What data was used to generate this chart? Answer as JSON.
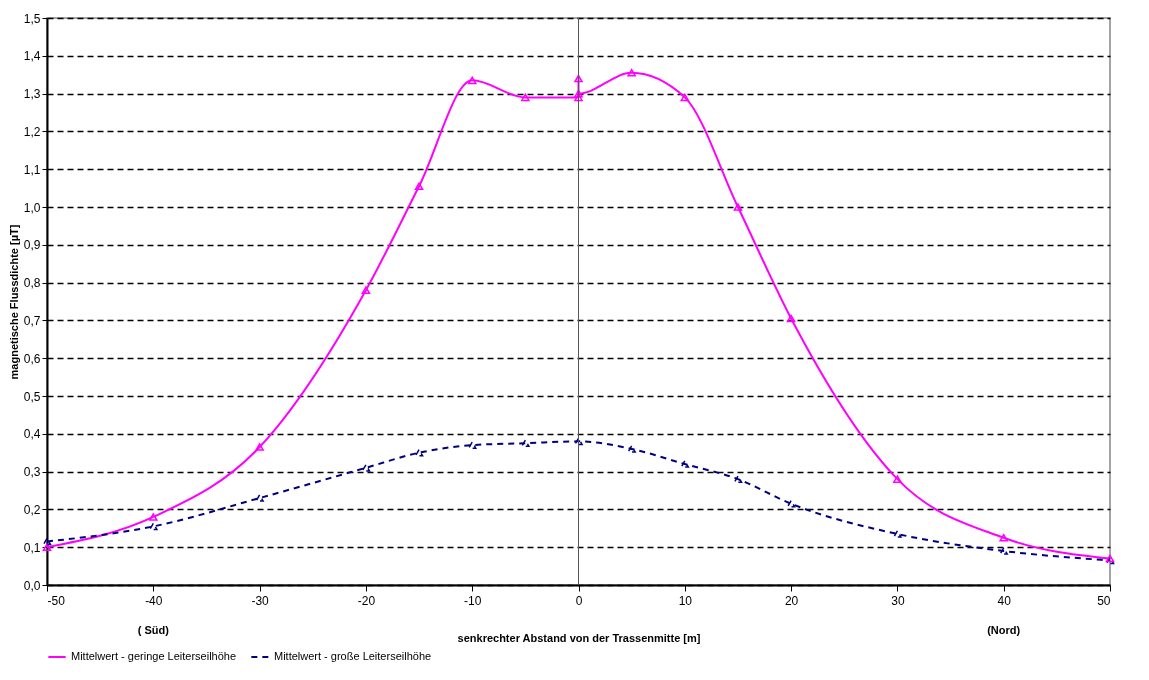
{
  "chart_data": {
    "type": "line",
    "xlabel": "senkrechter Abstand von der Trassenmitte [m]",
    "ylabel": "magnetische Flussdichte [µT]",
    "annotations": [
      "( Süd)",
      "(Nord)"
    ],
    "x": [
      -50,
      -40,
      -30,
      -20,
      -15,
      -10,
      -5,
      0,
      0,
      0,
      5,
      10,
      15,
      20,
      30,
      40,
      50
    ],
    "series": [
      {
        "name": "Mittelwert - geringe Leiterseilhöhe",
        "color": "#ff00ff",
        "line_style": "solid",
        "values": [
          0.1,
          0.18,
          0.365,
          0.78,
          1.055,
          1.335,
          1.29,
          1.29,
          1.34,
          1.3,
          1.355,
          1.29,
          1.0,
          0.705,
          0.28,
          0.125,
          0.07
        ]
      },
      {
        "name": "Mittelwert - große Leiterseilhöhe",
        "color": "#000080",
        "line_style": "dashed",
        "x": [
          -50,
          -40,
          -30,
          -20,
          -15,
          -10,
          -5,
          0,
          5,
          10,
          15,
          20,
          30,
          40,
          50
        ],
        "values": [
          0.115,
          0.155,
          0.23,
          0.31,
          0.35,
          0.37,
          0.375,
          0.38,
          0.36,
          0.32,
          0.28,
          0.215,
          0.135,
          0.09,
          0.065
        ]
      }
    ],
    "xlim": [
      -50,
      50
    ],
    "xticks": [
      -50,
      -40,
      -30,
      -20,
      -10,
      0,
      10,
      20,
      30,
      40,
      50
    ],
    "ylim": [
      0,
      1.5
    ],
    "yticks": [
      {
        "value": 0,
        "label": "0,0"
      },
      {
        "value": 0.1,
        "label": "0,1"
      },
      {
        "value": 0.2,
        "label": "0,2"
      },
      {
        "value": 0.3,
        "label": "0,3"
      },
      {
        "value": 0.4,
        "label": "0,4"
      },
      {
        "value": 0.5,
        "label": "0,5"
      },
      {
        "value": 0.6,
        "label": "0,6"
      },
      {
        "value": 0.7,
        "label": "0,7"
      },
      {
        "value": 0.8,
        "label": "0,8"
      },
      {
        "value": 0.9,
        "label": "0,9"
      },
      {
        "value": 1.0,
        "label": "1,0"
      },
      {
        "value": 1.1,
        "label": "1,1"
      },
      {
        "value": 1.2,
        "label": "1,2"
      },
      {
        "value": 1.3,
        "label": "1,3"
      },
      {
        "value": 1.4,
        "label": "1,4"
      },
      {
        "value": 1.5,
        "label": "1,5"
      }
    ],
    "ref_lines": [
      {
        "axis": "x",
        "value": 0,
        "color": "#555555",
        "line_style": "solid"
      }
    ],
    "grid": "y",
    "legend": "bottom",
    "marker": "triangle"
  }
}
